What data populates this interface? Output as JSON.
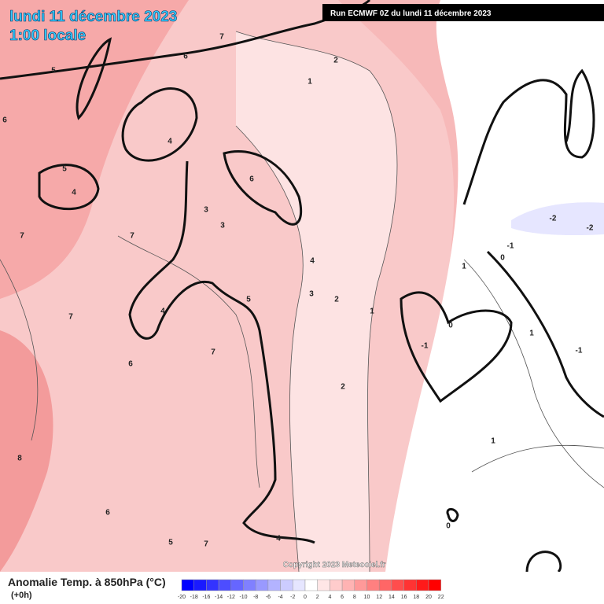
{
  "header": {
    "date": "lundi 11 décembre 2023",
    "time": "1:00 locale",
    "run": "Run ECMWF 0Z du lundi 11 décembre 2023"
  },
  "footer": {
    "copyright": "Copyright 2023 Meteociel.fr",
    "variable": "Anomalie Temp. à 850hPa (°C)",
    "lead": "(+0h)"
  },
  "colorbar": {
    "ticks": [
      -20,
      -18,
      -16,
      -14,
      -12,
      -10,
      -8,
      -6,
      -4,
      -2,
      0,
      2,
      4,
      6,
      8,
      10,
      12,
      14,
      16,
      18,
      20,
      22
    ],
    "colors": [
      "#0000ff",
      "#1a1aff",
      "#3333ff",
      "#4d4dff",
      "#6666ff",
      "#8080ff",
      "#9999ff",
      "#b3b3ff",
      "#ccccff",
      "#e6e6ff",
      "#ffffff",
      "#ffe6e6",
      "#ffcccc",
      "#ffb3b3",
      "#ff9999",
      "#ff8080",
      "#ff6666",
      "#ff4d4d",
      "#ff3333",
      "#ff1a1a",
      "#ff0000"
    ]
  },
  "contour_labels": [
    5,
    6,
    7,
    6,
    2,
    1,
    4,
    5,
    4,
    6,
    3,
    3,
    7,
    7,
    4,
    3,
    2,
    5,
    4,
    7,
    1,
    0,
    -1,
    7,
    6,
    2,
    1,
    0,
    -1,
    -2,
    -2,
    1,
    -1,
    1,
    8,
    6,
    4,
    5,
    7,
    0
  ]
}
